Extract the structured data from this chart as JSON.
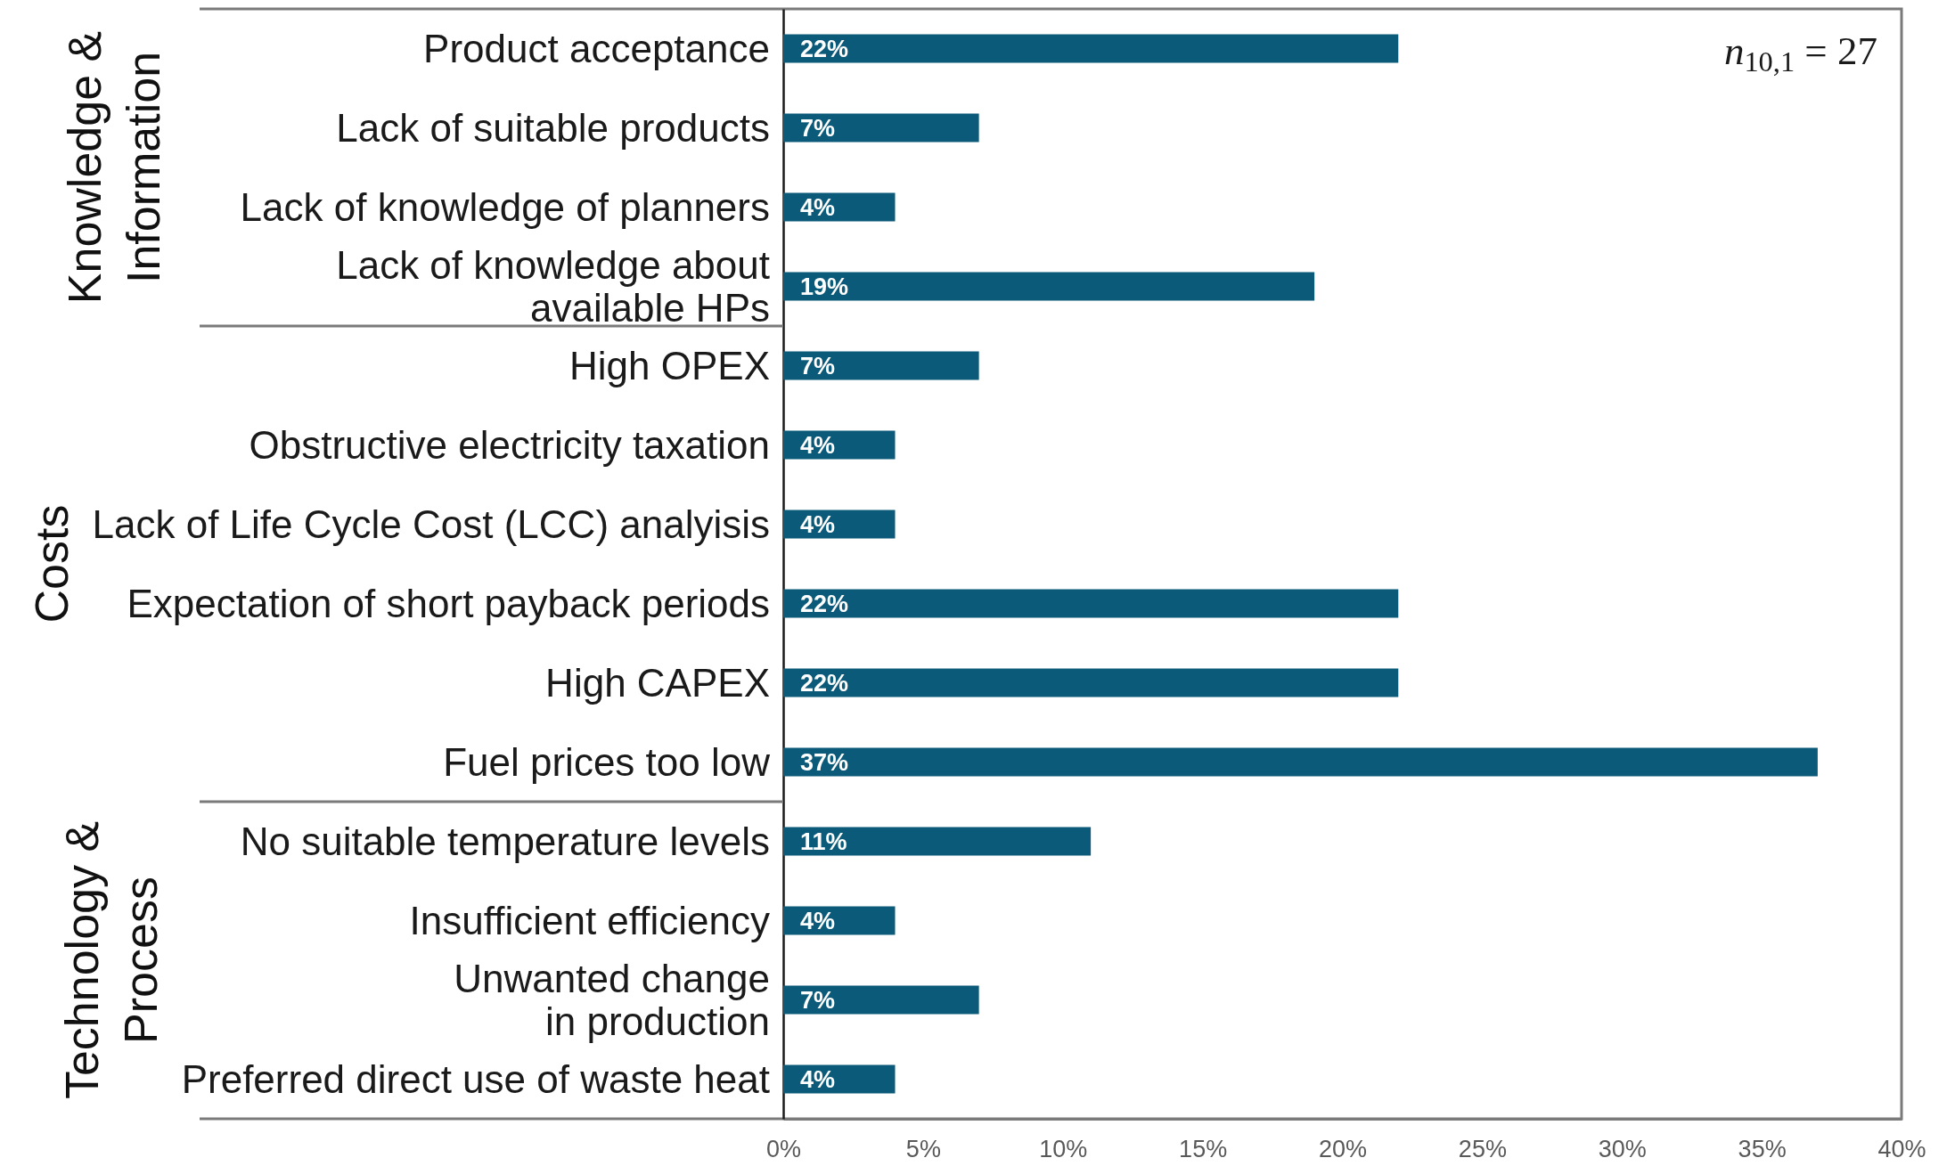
{
  "chart_data": {
    "type": "bar",
    "orientation": "horizontal",
    "categories": [
      "Product acceptance",
      "Lack of suitable products",
      "Lack of knowledge of planners",
      "Lack of knowledge about\navailable HPs",
      "High OPEX",
      "Obstructive electricity taxation",
      "Lack of Life Cycle Cost (LCC) analyisis",
      "Expectation of short payback periods",
      "High CAPEX",
      "Fuel prices too low",
      "No suitable temperature levels",
      "Insufficient efficiency",
      "Unwanted change\nin production",
      "Preferred direct use of waste heat"
    ],
    "values": [
      22,
      7,
      4,
      19,
      7,
      4,
      4,
      22,
      22,
      37,
      11,
      4,
      7,
      4
    ],
    "value_labels": [
      "22%",
      "7%",
      "4%",
      "19%",
      "7%",
      "4%",
      "4%",
      "22%",
      "22%",
      "37%",
      "11%",
      "4%",
      "7%",
      "4%"
    ],
    "color": "#0c5a79",
    "xlim": [
      0,
      40
    ],
    "xticks": [
      {
        "value": 0,
        "label": "0%"
      },
      {
        "value": 5,
        "label": "5%"
      },
      {
        "value": 10,
        "label": "10%"
      },
      {
        "value": 15,
        "label": "15%"
      },
      {
        "value": 20,
        "label": "20%"
      },
      {
        "value": 25,
        "label": "25%"
      },
      {
        "value": 30,
        "label": "30%"
      },
      {
        "value": 35,
        "label": "35%"
      },
      {
        "value": 40,
        "label": "40%"
      }
    ],
    "annotations": [
      "n$_{10,1}$ = 27",
      "Knowledge &\nInformation",
      "Costs",
      "Technology &\nProcess"
    ]
  }
}
